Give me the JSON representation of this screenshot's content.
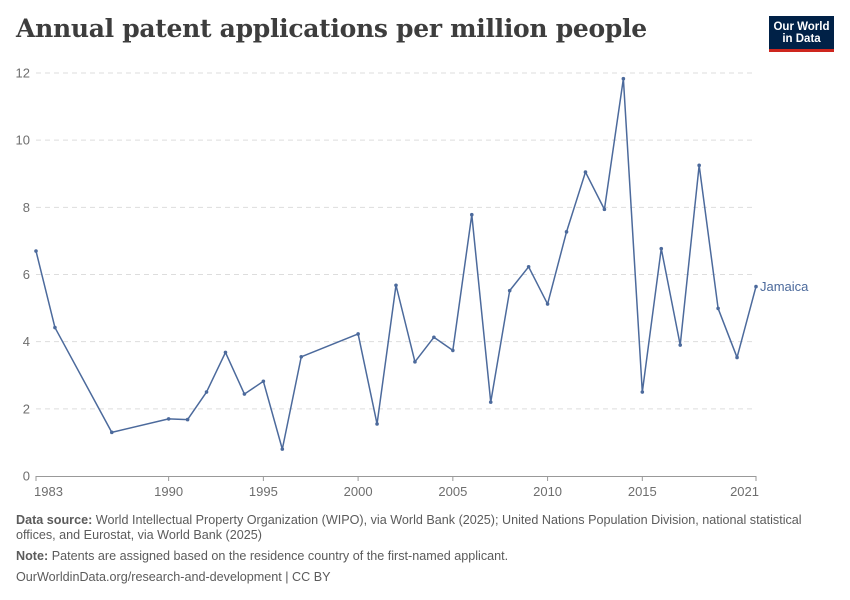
{
  "header": {
    "title": "Annual patent applications per million people",
    "logo_line1": "Our World",
    "logo_line2": "in Data"
  },
  "chart_data": {
    "type": "line",
    "title": "Annual patent applications per million people",
    "xlabel": "",
    "ylabel": "",
    "xlim": [
      1983,
      2021
    ],
    "ylim": [
      0,
      12
    ],
    "yticks": [
      0,
      2,
      4,
      6,
      8,
      10,
      12
    ],
    "xticks": [
      1983,
      1990,
      1995,
      2000,
      2005,
      2010,
      2015,
      2021
    ],
    "grid": true,
    "series": [
      {
        "name": "Jamaica",
        "color": "#4c6a9c",
        "x": [
          1983,
          1984,
          1987,
          1990,
          1991,
          1992,
          1993,
          1994,
          1995,
          1996,
          1997,
          2000,
          2001,
          2002,
          2003,
          2004,
          2005,
          2006,
          2007,
          2008,
          2009,
          2010,
          2011,
          2012,
          2013,
          2014,
          2015,
          2016,
          2017,
          2018,
          2019,
          2020,
          2021
        ],
        "y": [
          6.7,
          4.42,
          1.3,
          1.7,
          1.68,
          2.5,
          3.68,
          2.44,
          2.82,
          0.8,
          3.55,
          4.23,
          1.55,
          5.68,
          3.4,
          4.13,
          3.74,
          7.78,
          2.2,
          5.52,
          6.23,
          5.12,
          7.27,
          9.05,
          7.94,
          11.83,
          2.5,
          6.77,
          3.9,
          9.25,
          4.99,
          3.53,
          5.64
        ]
      }
    ]
  },
  "footer": {
    "source_label": "Data source:",
    "source_text": "World Intellectual Property Organization (WIPO), via World Bank (2025); United Nations Population Division, national statistical offices, and Eurostat, via World Bank (2025)",
    "note_label": "Note:",
    "note_text": "Patents are assigned based on the residence country of the first-named applicant.",
    "credit": "OurWorldinData.org/research-and-development | CC BY"
  },
  "colors": {
    "line": "#4c6a9c",
    "grid": "#dddddd",
    "logo_bg": "#002147",
    "logo_accent": "#ce261e"
  }
}
